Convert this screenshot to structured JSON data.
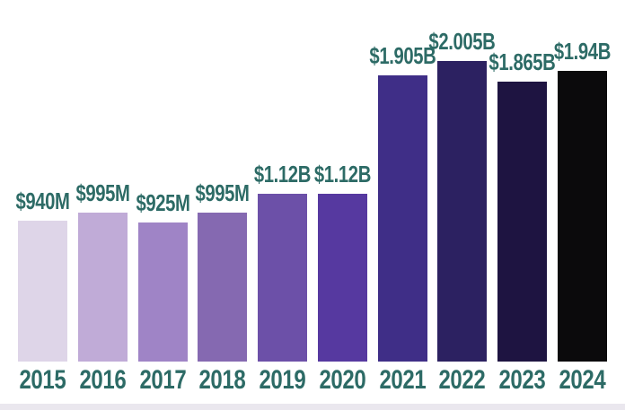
{
  "chart_data": {
    "type": "bar",
    "title": "",
    "unit": "USD",
    "categories": [
      "2015",
      "2016",
      "2017",
      "2018",
      "2019",
      "2020",
      "2021",
      "2022",
      "2023",
      "2024"
    ],
    "values": [
      0.94,
      0.995,
      0.925,
      0.995,
      1.12,
      1.12,
      1.905,
      2.005,
      1.865,
      1.94
    ],
    "value_labels": [
      "$940M",
      "$995M",
      "$925M",
      "$995M",
      "$1.12B",
      "$1.12B",
      "$1.905B",
      "$2.005B",
      "$1.865B",
      "$1.94B"
    ],
    "ylim": [
      0,
      2.41
    ],
    "grid": false,
    "legend": false,
    "bar_colors": [
      "#ded5e8",
      "#c0abd7",
      "#9f84c6",
      "#8569b1",
      "#6c50a8",
      "#5639a0",
      "#3f2e87",
      "#2c2161",
      "#1e1441",
      "#0b0a0c"
    ],
    "label_color": "#2d6b66",
    "background": "#ffffff"
  },
  "layout_hints_note": "all visible text lives in chart_data"
}
